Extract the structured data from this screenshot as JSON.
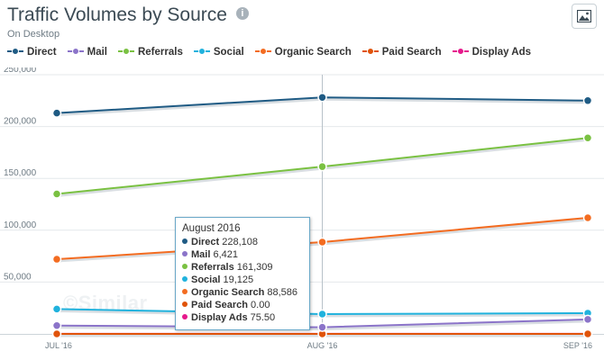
{
  "header": {
    "title": "Traffic Volumes by Source",
    "info_glyph": "i",
    "subtitle": "On Desktop",
    "export_icon": "image-icon"
  },
  "watermark": "©Similar",
  "tooltip": {
    "title": "August 2016",
    "rows": [
      {
        "name": "Direct",
        "value": "228,108",
        "color": "#1f5b84"
      },
      {
        "name": "Mail",
        "value": "6,421",
        "color": "#8b74c9"
      },
      {
        "name": "Referrals",
        "value": "161,309",
        "color": "#7ac142"
      },
      {
        "name": "Social",
        "value": "19,125",
        "color": "#20b2dd"
      },
      {
        "name": "Organic Search",
        "value": "88,586",
        "color": "#f36c21"
      },
      {
        "name": "Paid Search",
        "value": "0.00",
        "color": "#e0530a"
      },
      {
        "name": "Display Ads",
        "value": "75.50",
        "color": "#e6198c"
      }
    ]
  },
  "chart_data": {
    "type": "line",
    "title": "Traffic Volumes by Source",
    "subtitle": "On Desktop",
    "categories": [
      "JUL '16",
      "AUG '16",
      "SEP '16"
    ],
    "ylim": [
      0,
      250000
    ],
    "yticks": [
      0,
      50000,
      100000,
      150000,
      200000,
      250000
    ],
    "ytick_labels": [
      "",
      "50,000",
      "100,000",
      "150,000",
      "200,000",
      "250,000"
    ],
    "grid": true,
    "legend_position": "top",
    "series": [
      {
        "name": "Direct",
        "color": "#1f5b84",
        "values": [
          213000,
          228108,
          225000
        ]
      },
      {
        "name": "Mail",
        "color": "#8b74c9",
        "values": [
          8000,
          6421,
          14000
        ]
      },
      {
        "name": "Referrals",
        "color": "#7ac142",
        "values": [
          135000,
          161309,
          189000
        ]
      },
      {
        "name": "Social",
        "color": "#20b2dd",
        "values": [
          24000,
          19125,
          20000
        ]
      },
      {
        "name": "Organic Search",
        "color": "#f36c21",
        "values": [
          72000,
          88586,
          112000
        ]
      },
      {
        "name": "Paid Search",
        "color": "#e0530a",
        "values": [
          0,
          0,
          0
        ]
      },
      {
        "name": "Display Ads",
        "color": "#e6198c",
        "values": [
          75,
          75.5,
          80
        ]
      }
    ]
  }
}
